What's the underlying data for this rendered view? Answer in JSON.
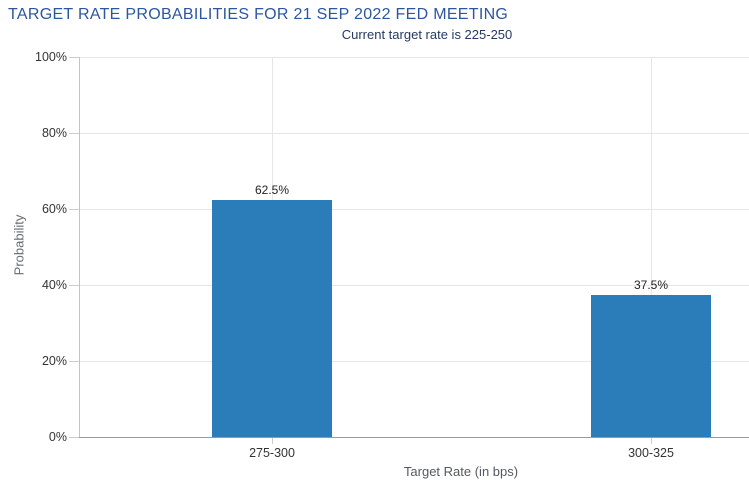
{
  "header": {
    "title": "TARGET RATE PROBABILITIES FOR 21 SEP 2022 FED MEETING",
    "subtitle": "Current target rate is 225-250"
  },
  "colors": {
    "bar": "#2a7db9",
    "title": "#2c56a0",
    "subtitle": "#263a61",
    "gridline": "#e6e6e6",
    "y_axis_line": "#c4c4c4",
    "x_axis_line": "#999999",
    "tick_label": "#333333",
    "axis_title": "#666b70",
    "data_label": "#222222",
    "background": "#ffffff"
  },
  "chart_data": {
    "type": "bar",
    "title": "TARGET RATE PROBABILITIES FOR 21 SEP 2022 FED MEETING",
    "subtitle": "Current target rate is 225-250",
    "categories": [
      "275-300",
      "300-325"
    ],
    "values": [
      62.5,
      37.5
    ],
    "data_labels": [
      "62.5%",
      "37.5%"
    ],
    "xlabel": "Target Rate (in bps)",
    "ylabel": "Probability",
    "ylim": [
      0,
      100
    ],
    "ytick_values": [
      0,
      20,
      40,
      60,
      80,
      100
    ],
    "ytick_labels": [
      "0%",
      "20%",
      "40%",
      "60%",
      "80%",
      "100%"
    ],
    "grid": "horizontal lines at 20% steps plus vertical line at each category center",
    "legend": "none"
  }
}
